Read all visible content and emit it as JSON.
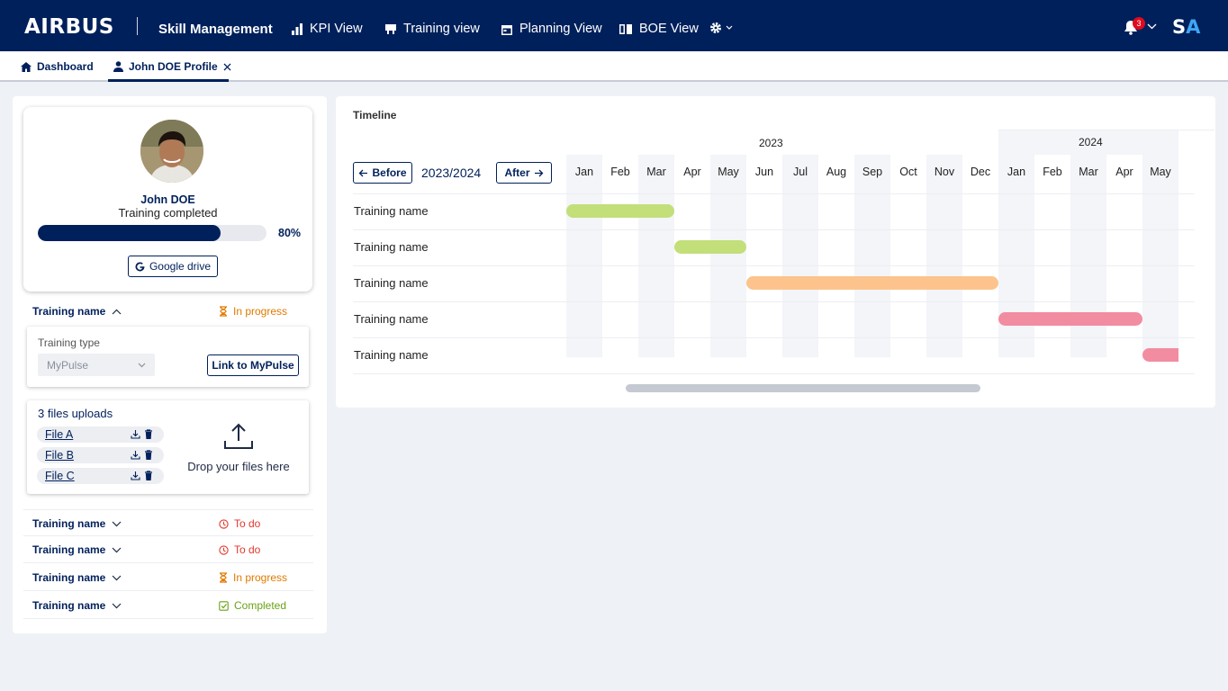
{
  "header": {
    "logo": "AIRBUS",
    "app_name": "Skill Management",
    "nav": [
      {
        "label": "KPI View",
        "icon": "bar-chart-icon"
      },
      {
        "label": "Training view",
        "icon": "presentation-icon"
      },
      {
        "label": "Planning View",
        "icon": "calendar-icon"
      },
      {
        "label": "BOE View",
        "icon": "book-icon"
      }
    ],
    "settings_icon": "gear-icon",
    "notification_count": "3",
    "user_initials_1": "S",
    "user_initials_2": "A",
    "colors": {
      "bar": "#00205b",
      "accent": "#3ea6f4",
      "badge": "#e10a1e"
    }
  },
  "tabs": [
    {
      "label": "Dashboard",
      "icon": "home-icon"
    },
    {
      "label": "John DOE Profile",
      "icon": "user-icon",
      "active": true
    }
  ],
  "profile": {
    "name": "John DOE",
    "status": "Training completed",
    "progress": 0.8,
    "progress_label": "80%",
    "drive_button": "Google drive"
  },
  "trainings": [
    {
      "name": "Training name",
      "status": "In progress",
      "status_color": "#e07a00",
      "icon": "hourglass-icon",
      "expanded": true
    },
    {
      "name": "Training name",
      "status": "To do",
      "status_color": "#e2382f",
      "icon": "clock-icon"
    },
    {
      "name": "Training name",
      "status": "To do",
      "status_color": "#e2382f",
      "icon": "clock-icon"
    },
    {
      "name": "Training name",
      "status": "In progress",
      "status_color": "#e07a00",
      "icon": "hourglass-icon"
    },
    {
      "name": "Training name",
      "status": "Completed",
      "status_color": "#6aa117",
      "icon": "check-square-icon"
    }
  ],
  "training_detail": {
    "type_label": "Training type",
    "type_value": "MyPulse",
    "link_button": "Link to MyPulse",
    "files_title": "3 files uploads",
    "files": [
      "File A",
      "File B",
      "File C"
    ],
    "drop_text": "Drop your files here"
  },
  "timeline": {
    "title": "Timeline",
    "before_label": "Before",
    "after_label": "After",
    "period": "2023/2024",
    "years": [
      "2023",
      "2024"
    ],
    "months": [
      "Jan",
      "Feb",
      "Mar",
      "Apr",
      "May",
      "Jun",
      "Jul",
      "Aug",
      "Sep",
      "Oct",
      "Nov",
      "Dec",
      "Jan",
      "Feb",
      "Mar",
      "Apr",
      "May"
    ],
    "rows": [
      {
        "label": "Training name",
        "start": 0,
        "end": 3,
        "color": "#c2df7a"
      },
      {
        "label": "Training name",
        "start": 3,
        "end": 5,
        "color": "#c2df7a"
      },
      {
        "label": "Training name",
        "start": 5,
        "end": 12,
        "color": "#fcc48c"
      },
      {
        "label": "Training name",
        "start": 12,
        "end": 16,
        "color": "#f28ca0"
      },
      {
        "label": "Training name",
        "start": 16,
        "end": 17,
        "color": "#f28ca0"
      }
    ]
  }
}
